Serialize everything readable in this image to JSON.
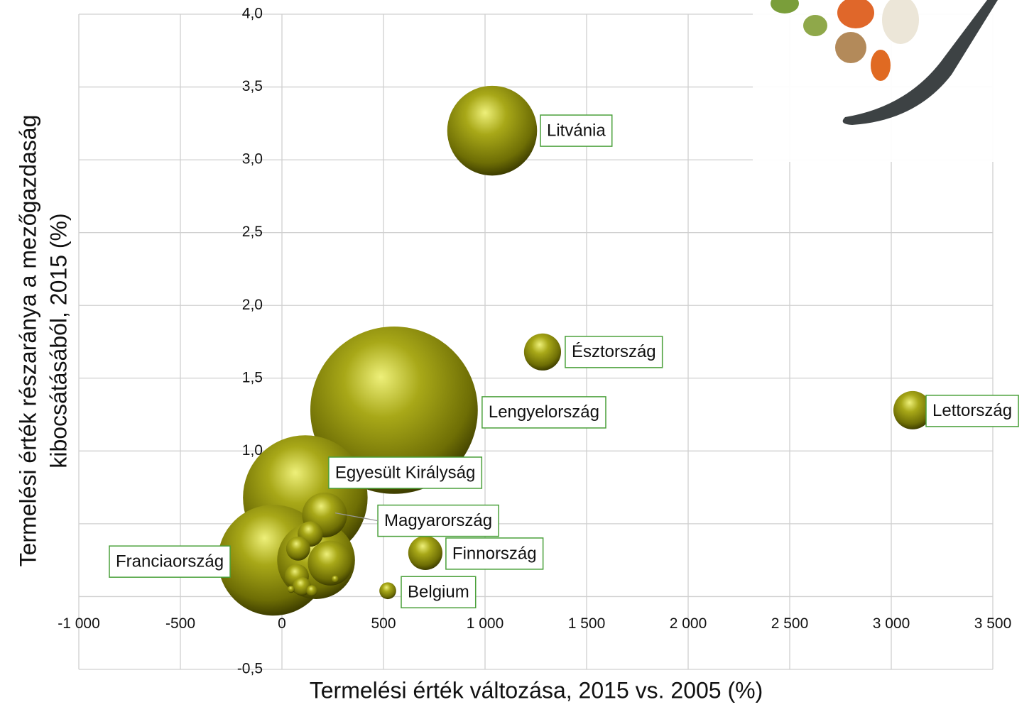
{
  "chart_data": {
    "type": "bubble",
    "x_label": "Termelési érték változása, 2015 vs. 2005 (%)",
    "y_label_lines": [
      "Termelési érték részaránya a mezőgazdaság",
      "kibocsátásából, 2015 (%)"
    ],
    "xlim": [
      -1000,
      3500
    ],
    "xticks": [
      {
        "value": -1000,
        "label": "-1 000"
      },
      -500,
      0,
      500,
      {
        "value": 1000,
        "label": "1 000"
      },
      {
        "value": 1500,
        "label": "1 500"
      },
      {
        "value": 2000,
        "label": "2 000"
      },
      {
        "value": 2500,
        "label": "2 500"
      },
      {
        "value": 3000,
        "label": "3 000"
      },
      {
        "value": 3500,
        "label": "3 500"
      }
    ],
    "ylim": [
      -0.5,
      4.0
    ],
    "yticks": [
      {
        "value": -0.5,
        "label": "-0,5"
      },
      {
        "value": 0,
        "label": "0,0"
      },
      {
        "value": 0.5,
        "label": "0,5"
      },
      {
        "value": 1.0,
        "label": "1,0"
      },
      {
        "value": 1.5,
        "label": "1,5"
      },
      {
        "value": 2.0,
        "label": "2,0"
      },
      {
        "value": 2.5,
        "label": "2,5"
      },
      {
        "value": 3.0,
        "label": "3,0"
      },
      {
        "value": 3.5,
        "label": "3,5"
      },
      {
        "value": 4.0,
        "label": "4,0"
      }
    ],
    "grid": true,
    "color": "#9a9a10",
    "points": [
      {
        "label": "Lengyelország",
        "x": 552,
        "y": 1.28,
        "size": 139
      },
      {
        "label": "Egyesült Királyság",
        "x": 115,
        "y": 0.68,
        "size": 77
      },
      {
        "label": "Franciaország",
        "x": -42,
        "y": 0.25,
        "size": 61
      },
      {
        "label": "Litvánia",
        "x": 1035,
        "y": 3.2,
        "size": 40
      },
      {
        "label": null,
        "x": 168,
        "y": 0.25,
        "size": 30
      },
      {
        "label": "Magyarország",
        "x": 210,
        "y": 0.56,
        "size": 10
      },
      {
        "label": null,
        "x": 238,
        "y": 0.23,
        "size": 10
      },
      {
        "label": "Lettország",
        "x": 3105,
        "y": 1.28,
        "size": 7.3
      },
      {
        "label": "Észtország",
        "x": 1283,
        "y": 1.68,
        "size": 6.8
      },
      {
        "label": "Finnország",
        "x": 706,
        "y": 0.3,
        "size": 5.8
      },
      {
        "label": null,
        "x": 140,
        "y": 0.43,
        "size": 3.2
      },
      {
        "label": null,
        "x": 80,
        "y": 0.33,
        "size": 2.9
      },
      {
        "label": null,
        "x": 73,
        "y": 0.14,
        "size": 2.9
      },
      {
        "label": null,
        "x": 98,
        "y": 0.07,
        "size": 1.7
      },
      {
        "label": "Belgium",
        "x": 521,
        "y": 0.04,
        "size": 1.4
      },
      {
        "label": null,
        "x": 147,
        "y": 0.04,
        "size": 0.6
      },
      {
        "label": null,
        "x": 45,
        "y": 0.05,
        "size": 0.25
      },
      {
        "label": null,
        "x": 262,
        "y": 0.12,
        "size": 0.25
      }
    ]
  }
}
